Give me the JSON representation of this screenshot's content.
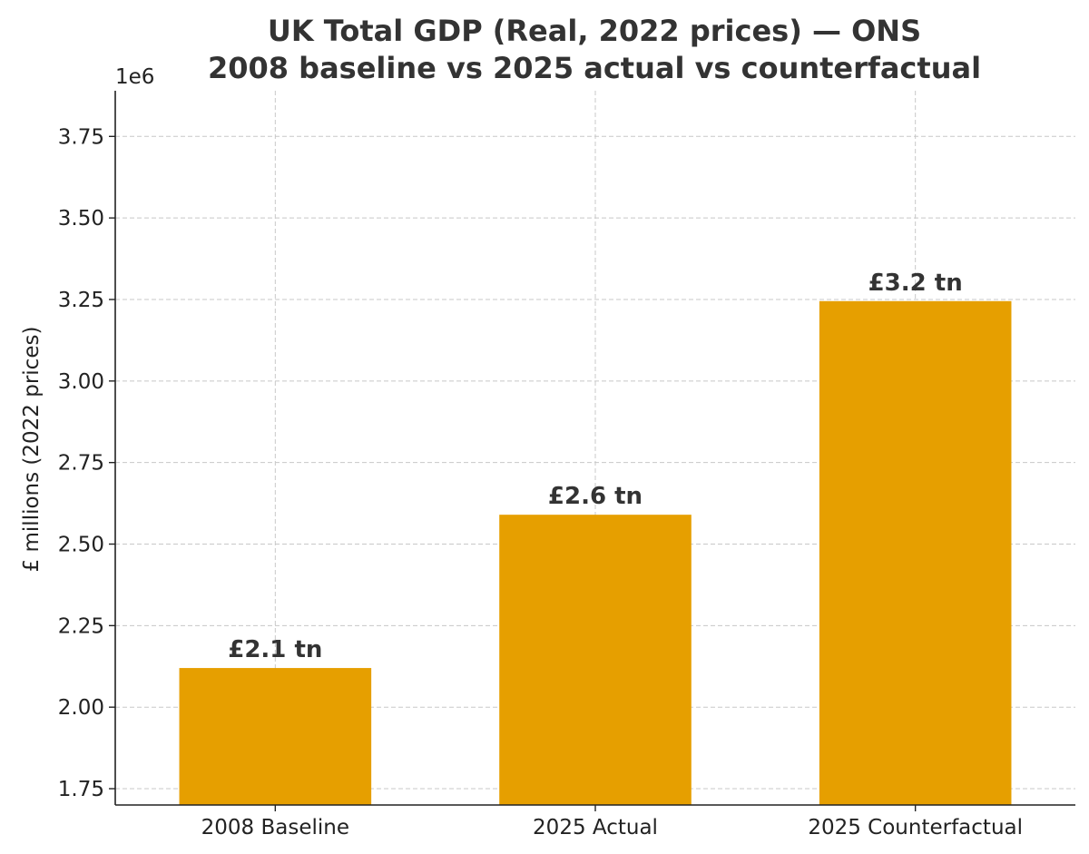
{
  "chart_data": {
    "type": "bar",
    "title_lines": [
      "UK Total GDP (Real, 2022 prices) — ONS",
      "2008 baseline vs 2025 actual vs counterfactual"
    ],
    "xlabel": "",
    "ylabel": "£ millions (2022 prices)",
    "offset_text": "1e6",
    "categories": [
      "2008 Baseline",
      "2025 Actual",
      "2025 Counterfactual"
    ],
    "values": [
      2120000,
      2590000,
      3245000
    ],
    "data_labels": [
      "£2.1 tn",
      "£2.6 tn",
      "£3.2 tn"
    ],
    "ylim": [
      1700000,
      3890000
    ],
    "yticks": [
      1750000,
      2000000,
      2250000,
      2500000,
      2750000,
      3000000,
      3250000,
      3500000,
      3750000
    ],
    "ytick_labels": [
      "1.75",
      "2.00",
      "2.25",
      "2.50",
      "2.75",
      "3.00",
      "3.25",
      "3.50",
      "3.75"
    ],
    "grid": true,
    "bar_color": "#E69F00"
  }
}
